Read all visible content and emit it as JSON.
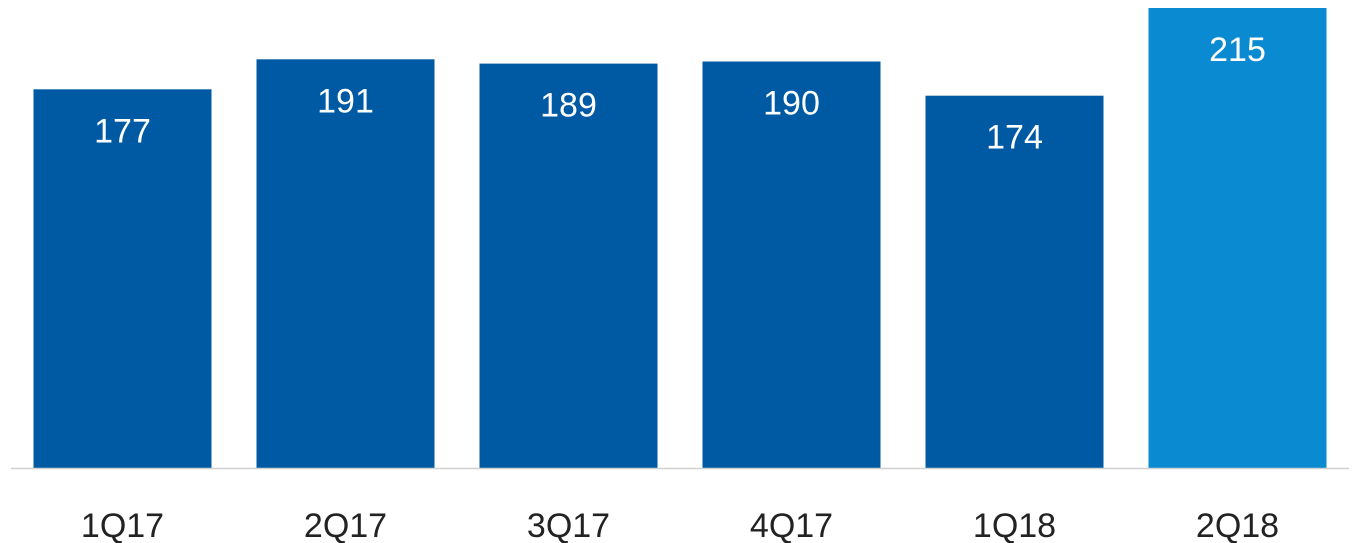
{
  "chart_data": {
    "type": "bar",
    "categories": [
      "1Q17",
      "2Q17",
      "3Q17",
      "4Q17",
      "1Q18",
      "2Q18"
    ],
    "values": [
      177,
      191,
      189,
      190,
      174,
      215
    ],
    "data_labels": [
      "177",
      "191",
      "189",
      "190",
      "174",
      "215"
    ],
    "highlighted_category": "2Q18",
    "ylim": [
      0,
      215
    ],
    "grid": false,
    "legend": "none",
    "colors": {
      "bar": "#005aa3",
      "highlight": "#0a8ad1",
      "axis": "#d0d0d0",
      "label": "#ffffff",
      "tick": "#222222"
    }
  }
}
